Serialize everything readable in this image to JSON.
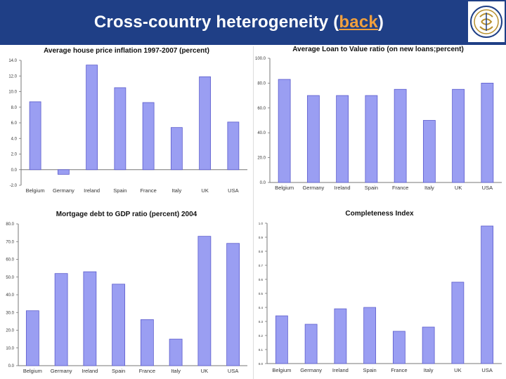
{
  "header": {
    "title_main": "Cross-country heterogeneity (",
    "title_link": "back",
    "title_end": ")",
    "bg_color": "#1f3f86",
    "link_color": "#f2a03d",
    "logo_icon": "central-bank-emblem-icon"
  },
  "chart_data": [
    {
      "id": "chart1",
      "type": "bar",
      "title": "Average house price inflation 1997-2007 (percent)",
      "categories": [
        "Belgium",
        "Germany",
        "Ireland",
        "Spain",
        "France",
        "Italy",
        "UK",
        "USA"
      ],
      "values": [
        8.7,
        -0.6,
        13.4,
        10.5,
        8.6,
        5.4,
        11.9,
        6.1
      ],
      "ylim": [
        -2.0,
        14.0
      ],
      "yticks": [
        "14.0",
        "12.0",
        "10.0",
        "8.0",
        "6.0",
        "4.0",
        "2.0",
        "0.0",
        "-2.0"
      ],
      "xlabel": "",
      "ylabel": ""
    },
    {
      "id": "chart2",
      "type": "bar",
      "title": "Average Loan to Value ratio  (on new loans;percent)",
      "categories": [
        "Belgium",
        "Germany",
        "Ireland",
        "Spain",
        "France",
        "Italy",
        "UK",
        "USA"
      ],
      "values": [
        83,
        70,
        70,
        70,
        75,
        50,
        75,
        80
      ],
      "ylim": [
        0,
        100
      ],
      "yticks": [
        "100.0",
        "80.0",
        "60.0",
        "40.0",
        "20.0",
        "0.0"
      ],
      "xlabel": "",
      "ylabel": ""
    },
    {
      "id": "chart3",
      "type": "bar",
      "title": "Mortgage debt to GDP ratio (percent) 2004",
      "categories": [
        "Belgium",
        "Germany",
        "Ireland",
        "Spain",
        "France",
        "Italy",
        "UK",
        "USA"
      ],
      "values": [
        31,
        52,
        53,
        46,
        26,
        15,
        73,
        69
      ],
      "ylim": [
        0,
        80
      ],
      "yticks": [
        "80.0",
        "70.0",
        "60.0",
        "50.0",
        "40.0",
        "30.0",
        "20.0",
        "10.0",
        "0.0"
      ],
      "xlabel": "",
      "ylabel": ""
    },
    {
      "id": "chart4",
      "type": "bar",
      "title": "Completeness Index",
      "categories": [
        "Belgium",
        "Germany",
        "Ireland",
        "Spain",
        "France",
        "Italy",
        "UK",
        "USA"
      ],
      "values": [
        0.34,
        0.28,
        0.39,
        0.4,
        0.23,
        0.26,
        0.58,
        0.98
      ],
      "ylim": [
        0,
        1.0
      ],
      "yticks": [
        "1.0",
        "0.9",
        "0.8",
        "0.7",
        "0.6",
        "0.5",
        "0.4",
        "0.3",
        "0.2",
        "0.1",
        "0.0"
      ],
      "xlabel": "",
      "ylabel": ""
    }
  ],
  "colors": {
    "bar_fill": "#9a9ef2",
    "bar_stroke": "#5c5ccc",
    "axis": "#777777",
    "tick_text": "#333333",
    "title_text": "#111111"
  }
}
